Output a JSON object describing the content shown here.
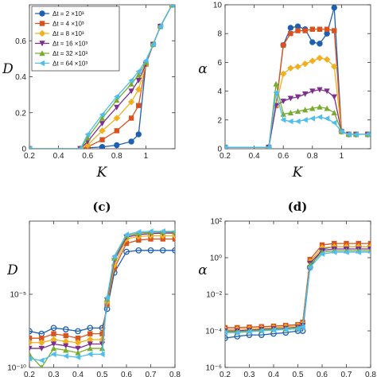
{
  "panels": {
    "c_label": "(c)",
    "d_label": "(d)"
  },
  "chart_data": [
    {
      "panel": "a",
      "type": "line",
      "xlabel": "K",
      "ylabel": "D",
      "xlim": [
        0.2,
        1.2
      ],
      "ylim": [
        0,
        0.8
      ],
      "xticks": [
        0.2,
        0.4,
        0.6,
        0.8,
        1
      ],
      "yticks": [
        0,
        0.2,
        0.4,
        0.6
      ],
      "legend_placement": "top-left",
      "series": [
        {
          "name": "Δt = 2  ×10³",
          "color": "#1f5fb0",
          "marker": "circle",
          "x": [
            0.2,
            0.55,
            0.6,
            0.7,
            0.8,
            0.9,
            0.95,
            1.0,
            1.05,
            1.1,
            1.18
          ],
          "y": [
            0,
            0,
            0.005,
            0.01,
            0.02,
            0.04,
            0.08,
            0.47,
            0.58,
            0.68,
            0.8
          ]
        },
        {
          "name": "Δt = 4  ×10³",
          "color": "#d9531e",
          "marker": "square",
          "x": [
            0.2,
            0.55,
            0.6,
            0.7,
            0.8,
            0.9,
            0.95,
            1.0,
            1.05,
            1.1,
            1.18
          ],
          "y": [
            0,
            0,
            0.01,
            0.05,
            0.1,
            0.17,
            0.24,
            0.47,
            0.58,
            0.68,
            0.8
          ]
        },
        {
          "name": "Δt = 8  ×10³",
          "color": "#f0b020",
          "marker": "diamond",
          "x": [
            0.2,
            0.55,
            0.6,
            0.7,
            0.8,
            0.9,
            0.95,
            1.0,
            1.05,
            1.1,
            1.18
          ],
          "y": [
            0,
            0,
            0.02,
            0.1,
            0.17,
            0.26,
            0.33,
            0.47,
            0.58,
            0.68,
            0.8
          ]
        },
        {
          "name": "Δt = 16  ×10³",
          "color": "#7e2f8e",
          "marker": "triangle-down",
          "x": [
            0.2,
            0.55,
            0.6,
            0.7,
            0.8,
            0.9,
            0.95,
            1.0,
            1.05,
            1.1,
            1.18
          ],
          "y": [
            0,
            0,
            0.04,
            0.14,
            0.23,
            0.32,
            0.38,
            0.47,
            0.58,
            0.68,
            0.8
          ]
        },
        {
          "name": "Δt = 32  ×10³",
          "color": "#77ac30",
          "marker": "triangle-up",
          "x": [
            0.2,
            0.55,
            0.6,
            0.7,
            0.8,
            0.9,
            0.95,
            1.0,
            1.05,
            1.1,
            1.18
          ],
          "y": [
            0,
            0,
            0.06,
            0.17,
            0.27,
            0.36,
            0.41,
            0.48,
            0.58,
            0.68,
            0.8
          ]
        },
        {
          "name": "Δt = 64  ×10³",
          "color": "#4dbeee",
          "marker": "triangle-left",
          "x": [
            0.2,
            0.55,
            0.6,
            0.7,
            0.8,
            0.9,
            0.95,
            1.0,
            1.05,
            1.1,
            1.18
          ],
          "y": [
            0,
            0,
            0.08,
            0.19,
            0.29,
            0.38,
            0.43,
            0.49,
            0.58,
            0.68,
            0.8
          ]
        }
      ]
    },
    {
      "panel": "b",
      "type": "line",
      "xlabel": "K",
      "ylabel": "α",
      "xlim": [
        0.2,
        1.2
      ],
      "ylim": [
        0,
        10
      ],
      "xticks": [
        0.2,
        0.4,
        0.6,
        0.8,
        1
      ],
      "yticks": [
        0,
        2,
        4,
        6,
        8,
        10
      ],
      "series": [
        {
          "name": "Δt = 2  ×10³",
          "color": "#1f5fb0",
          "marker": "circle",
          "x": [
            0.2,
            0.5,
            0.55,
            0.6,
            0.65,
            0.7,
            0.75,
            0.8,
            0.85,
            0.9,
            0.95,
            1.0,
            1.05,
            1.1,
            1.18
          ],
          "y": [
            0.1,
            0.1,
            3.0,
            7.2,
            8.4,
            8.5,
            8.3,
            7.4,
            7.3,
            8.0,
            9.8,
            1.2,
            1.0,
            1.0,
            1.0
          ]
        },
        {
          "name": "Δt = 4  ×10³",
          "color": "#d9531e",
          "marker": "square",
          "x": [
            0.2,
            0.5,
            0.55,
            0.6,
            0.65,
            0.7,
            0.75,
            0.8,
            0.85,
            0.9,
            0.95,
            1.0,
            1.05,
            1.1,
            1.18
          ],
          "y": [
            0.1,
            0.1,
            3.0,
            7.2,
            8.0,
            8.2,
            8.2,
            8.3,
            8.3,
            8.3,
            8.2,
            1.2,
            1.0,
            1.0,
            1.0
          ]
        },
        {
          "name": "Δt = 8  ×10³",
          "color": "#f0b020",
          "marker": "diamond",
          "x": [
            0.2,
            0.5,
            0.55,
            0.6,
            0.65,
            0.7,
            0.75,
            0.8,
            0.85,
            0.9,
            0.95,
            1.0,
            1.05,
            1.1,
            1.18
          ],
          "y": [
            0.1,
            0.1,
            3.0,
            5.2,
            5.6,
            5.7,
            5.9,
            6.1,
            6.3,
            6.2,
            5.7,
            1.2,
            1.0,
            1.0,
            1.0
          ]
        },
        {
          "name": "Δt = 16  ×10³",
          "color": "#7e2f8e",
          "marker": "triangle-down",
          "x": [
            0.2,
            0.5,
            0.55,
            0.6,
            0.65,
            0.7,
            0.75,
            0.8,
            0.85,
            0.9,
            0.95,
            1.0,
            1.05,
            1.1,
            1.18
          ],
          "y": [
            0.1,
            0.1,
            3.0,
            3.3,
            3.5,
            3.6,
            3.8,
            4.0,
            4.1,
            4.0,
            3.6,
            1.2,
            1.0,
            1.0,
            1.0
          ]
        },
        {
          "name": "Δt = 32  ×10³",
          "color": "#77ac30",
          "marker": "triangle-up",
          "x": [
            0.2,
            0.5,
            0.55,
            0.6,
            0.65,
            0.7,
            0.75,
            0.8,
            0.85,
            0.9,
            0.95,
            1.0,
            1.05,
            1.1,
            1.18
          ],
          "y": [
            0.1,
            0.1,
            4.5,
            2.4,
            2.5,
            2.6,
            2.7,
            2.8,
            2.9,
            2.8,
            2.5,
            1.2,
            1.0,
            1.0,
            1.0
          ]
        },
        {
          "name": "Δt = 64  ×10³",
          "color": "#4dbeee",
          "marker": "triangle-left",
          "x": [
            0.2,
            0.5,
            0.55,
            0.6,
            0.65,
            0.7,
            0.75,
            0.8,
            0.85,
            0.9,
            0.95,
            1.0,
            1.05,
            1.1,
            1.18
          ],
          "y": [
            0.1,
            0.1,
            3.9,
            2.0,
            1.9,
            1.9,
            2.0,
            2.1,
            2.2,
            2.1,
            1.8,
            1.2,
            1.0,
            1.0,
            1.0
          ]
        }
      ]
    },
    {
      "panel": "c",
      "type": "line",
      "xlabel": "",
      "ylabel": "D",
      "yscale": "log",
      "xlim": [
        0.2,
        0.8
      ],
      "ylim": [
        1e-10,
        1
      ],
      "xticks": [
        0.2,
        0.3,
        0.4,
        0.5,
        0.6,
        0.7,
        0.8
      ],
      "yticks": [
        1e-10,
        1e-05
      ],
      "ytick_labels": [
        "10⁻¹⁰",
        "10⁻⁵"
      ],
      "series": [
        {
          "name": "Δt = 2  ×10³",
          "color": "#1f5fb0",
          "marker": "circle-open",
          "x": [
            0.2,
            0.25,
            0.3,
            0.35,
            0.4,
            0.45,
            0.5,
            0.52,
            0.55,
            0.6,
            0.65,
            0.7,
            0.75,
            0.8
          ],
          "y": [
            3e-08,
            2e-08,
            5e-08,
            4e-08,
            3e-08,
            5e-08,
            5e-08,
            1e-06,
            0.0003,
            0.008,
            0.01,
            0.01,
            0.01,
            0.01
          ]
        },
        {
          "name": "Δt = 4  ×10³",
          "color": "#d9531e",
          "marker": "square",
          "x": [
            0.2,
            0.25,
            0.3,
            0.35,
            0.4,
            0.45,
            0.5,
            0.52,
            0.55,
            0.6,
            0.65,
            0.7,
            0.75,
            0.8
          ],
          "y": [
            1e-08,
            1e-08,
            2e-08,
            1.5e-08,
            1e-08,
            2e-08,
            2e-08,
            2e-06,
            0.0006,
            0.03,
            0.05,
            0.06,
            0.06,
            0.06
          ]
        },
        {
          "name": "Δt = 8  ×10³",
          "color": "#f0b020",
          "marker": "diamond",
          "x": [
            0.2,
            0.25,
            0.3,
            0.35,
            0.4,
            0.45,
            0.5,
            0.52,
            0.55,
            0.6,
            0.65,
            0.7,
            0.75,
            0.8
          ],
          "y": [
            5e-09,
            5e-09,
            8e-09,
            6e-09,
            5e-09,
            8e-09,
            8e-09,
            3e-06,
            0.001,
            0.06,
            0.09,
            0.1,
            0.1,
            0.1
          ]
        },
        {
          "name": "Δt = 16  ×10³",
          "color": "#7e2f8e",
          "marker": "triangle-down",
          "x": [
            0.2,
            0.25,
            0.3,
            0.35,
            0.4,
            0.45,
            0.5,
            0.52,
            0.55,
            0.6,
            0.65,
            0.7,
            0.75,
            0.8
          ],
          "y": [
            2e-09,
            2e-09,
            4e-09,
            3e-09,
            2e-09,
            4e-09,
            4e-09,
            4e-06,
            0.002,
            0.08,
            0.12,
            0.14,
            0.15,
            0.15
          ]
        },
        {
          "name": "Δt = 32  ×10³",
          "color": "#77ac30",
          "marker": "triangle-up",
          "x": [
            0.2,
            0.25,
            0.3,
            0.35,
            0.4,
            0.45,
            0.5,
            0.52,
            0.55,
            0.6,
            0.65,
            0.7,
            0.75,
            0.8
          ],
          "y": [
            8e-10,
            1e-10,
            2e-09,
            1.5e-09,
            1e-09,
            2e-09,
            2e-09,
            5e-06,
            0.003,
            0.1,
            0.15,
            0.17,
            0.18,
            0.18
          ]
        },
        {
          "name": "Δt = 64  ×10³",
          "color": "#4dbeee",
          "marker": "triangle-left",
          "x": [
            0.2,
            0.25,
            0.3,
            0.35,
            0.4,
            0.45,
            0.5,
            0.52,
            0.55,
            0.6,
            0.65,
            0.7,
            0.75,
            0.8
          ],
          "y": [
            4e-10,
            3e-10,
            8e-10,
            6e-10,
            5e-10,
            8e-10,
            8e-10,
            6e-06,
            0.004,
            0.12,
            0.18,
            0.2,
            0.2,
            0.2
          ]
        }
      ]
    },
    {
      "panel": "d",
      "type": "line",
      "xlabel": "",
      "ylabel": "α",
      "yscale": "log",
      "xlim": [
        0.2,
        0.8
      ],
      "ylim": [
        1e-06,
        100
      ],
      "xticks": [
        0.2,
        0.3,
        0.4,
        0.5,
        0.6,
        0.7,
        0.8
      ],
      "yticks": [
        1e-06,
        0.0001,
        0.01,
        1,
        100
      ],
      "ytick_labels": [
        "10⁻⁶",
        "10⁻⁴",
        "10⁻²",
        "10⁰",
        "10²"
      ],
      "series": [
        {
          "name": "Δt = 2  ×10³",
          "color": "#1f5fb0",
          "marker": "circle-open",
          "x": [
            0.2,
            0.25,
            0.3,
            0.35,
            0.4,
            0.45,
            0.5,
            0.52,
            0.55,
            0.6,
            0.65,
            0.7,
            0.75,
            0.8
          ],
          "y": [
            4e-05,
            5e-05,
            6e-05,
            6e-05,
            7e-05,
            8e-05,
            0.0001,
            0.0001,
            0.3,
            3,
            4,
            4,
            4,
            4
          ]
        },
        {
          "name": "Δt = 4  ×10³",
          "color": "#d9531e",
          "marker": "square",
          "x": [
            0.2,
            0.25,
            0.3,
            0.35,
            0.4,
            0.45,
            0.5,
            0.52,
            0.55,
            0.6,
            0.65,
            0.7,
            0.75,
            0.8
          ],
          "y": [
            0.00015,
            0.00015,
            0.00016,
            0.00017,
            0.00018,
            0.0002,
            0.00022,
            0.0003,
            0.8,
            5,
            6,
            6,
            6,
            6
          ]
        },
        {
          "name": "Δt = 8  ×10³",
          "color": "#f0b020",
          "marker": "diamond",
          "x": [
            0.2,
            0.25,
            0.3,
            0.35,
            0.4,
            0.45,
            0.5,
            0.52,
            0.55,
            0.6,
            0.65,
            0.7,
            0.75,
            0.8
          ],
          "y": [
            0.00012,
            0.00012,
            0.00013,
            0.00014,
            0.00015,
            0.00017,
            0.00019,
            0.00025,
            0.6,
            3.5,
            4,
            4,
            4,
            4
          ]
        },
        {
          "name": "Δt = 16  ×10³",
          "color": "#7e2f8e",
          "marker": "triangle-down",
          "x": [
            0.2,
            0.25,
            0.3,
            0.35,
            0.4,
            0.45,
            0.5,
            0.52,
            0.55,
            0.6,
            0.65,
            0.7,
            0.75,
            0.8
          ],
          "y": [
            0.0001,
            0.0001,
            0.00011,
            0.00012,
            0.00013,
            0.00014,
            0.00016,
            0.0002,
            0.5,
            2.5,
            3,
            3,
            3,
            3
          ]
        },
        {
          "name": "Δt = 32  ×10³",
          "color": "#77ac30",
          "marker": "triangle-up",
          "x": [
            0.2,
            0.25,
            0.3,
            0.35,
            0.4,
            0.45,
            0.5,
            0.52,
            0.55,
            0.6,
            0.65,
            0.7,
            0.75,
            0.8
          ],
          "y": [
            9e-05,
            9e-05,
            0.0001,
            0.00011,
            0.00012,
            0.00013,
            0.00015,
            0.00018,
            0.4,
            2,
            2.4,
            2.4,
            2.4,
            2.4
          ]
        },
        {
          "name": "Δt = 64  ×10³",
          "color": "#4dbeee",
          "marker": "triangle-left",
          "x": [
            0.2,
            0.25,
            0.3,
            0.35,
            0.4,
            0.45,
            0.5,
            0.52,
            0.55,
            0.6,
            0.65,
            0.7,
            0.75,
            0.8
          ],
          "y": [
            8e-05,
            8e-05,
            9e-05,
            0.0001,
            0.00011,
            0.00012,
            0.00013,
            0.00016,
            0.3,
            1.6,
            2,
            2,
            2,
            2
          ]
        }
      ]
    }
  ]
}
